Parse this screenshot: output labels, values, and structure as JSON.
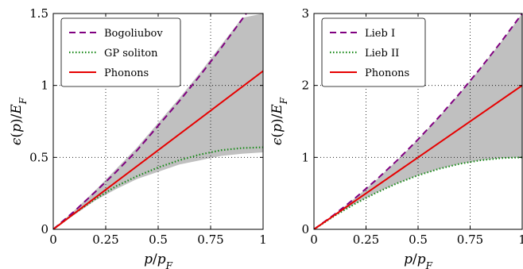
{
  "chart_data": [
    {
      "type": "line",
      "xlabel": "p/p_F",
      "ylabel": "ε(p)/E_F",
      "xlim": [
        0,
        1
      ],
      "ylim": [
        0,
        1.5
      ],
      "xticks": [
        "0",
        "0.25",
        "0.5",
        "0.75",
        "1"
      ],
      "yticks": [
        "0",
        "0.5",
        "1",
        "1.5"
      ],
      "grid": "dotted",
      "legend": "top-left",
      "shaded_region": {
        "color": "#c0c0c0",
        "x": [
          0,
          0.1,
          0.2,
          0.3,
          0.4,
          0.5,
          0.6,
          0.7,
          0.8,
          0.9,
          1.0
        ],
        "lower": [
          0,
          0.1,
          0.2,
          0.28,
          0.35,
          0.4,
          0.45,
          0.48,
          0.51,
          0.525,
          0.535
        ],
        "upper": [
          0,
          0.13,
          0.27,
          0.42,
          0.57,
          0.74,
          0.91,
          1.09,
          1.28,
          1.47,
          1.5
        ]
      },
      "series": [
        {
          "name": "Bogoliubov",
          "color": "#800080",
          "style": "dashed",
          "x": [
            0,
            0.1,
            0.2,
            0.3,
            0.4,
            0.5,
            0.6,
            0.7,
            0.8,
            0.9,
            0.95
          ],
          "y": [
            0,
            0.125,
            0.26,
            0.4,
            0.55,
            0.72,
            0.89,
            1.07,
            1.26,
            1.46,
            1.56
          ]
        },
        {
          "name": "GP soliton",
          "color": "#1a8a1a",
          "style": "dotted",
          "x": [
            0,
            0.1,
            0.2,
            0.3,
            0.4,
            0.5,
            0.6,
            0.7,
            0.8,
            0.9,
            1.0
          ],
          "y": [
            0,
            0.11,
            0.21,
            0.3,
            0.37,
            0.43,
            0.48,
            0.52,
            0.55,
            0.565,
            0.57
          ]
        },
        {
          "name": "Phonons",
          "color": "#e60000",
          "style": "solid",
          "x": [
            0,
            1
          ],
          "y": [
            0,
            1.1
          ]
        }
      ]
    },
    {
      "type": "line",
      "xlabel": "p/p_F",
      "ylabel": "ε(p)/E_F",
      "xlim": [
        0,
        1
      ],
      "ylim": [
        0,
        3
      ],
      "xticks": [
        "0",
        "0.25",
        "0.5",
        "0.75",
        "1"
      ],
      "yticks": [
        "0",
        "1",
        "2",
        "3"
      ],
      "grid": "dotted",
      "legend": "top-left",
      "shaded_region": {
        "color": "#c0c0c0",
        "x": [
          0,
          0.1,
          0.2,
          0.3,
          0.4,
          0.5,
          0.6,
          0.7,
          0.8,
          0.9,
          1.0
        ],
        "lower": [
          0,
          0.19,
          0.36,
          0.51,
          0.64,
          0.75,
          0.84,
          0.91,
          0.96,
          0.99,
          1.0
        ],
        "upper": [
          0,
          0.21,
          0.44,
          0.69,
          0.96,
          1.25,
          1.56,
          1.89,
          2.24,
          2.61,
          3.0
        ]
      },
      "series": [
        {
          "name": "Lieb I",
          "color": "#800080",
          "style": "dashed",
          "x": [
            0,
            0.1,
            0.2,
            0.3,
            0.4,
            0.5,
            0.6,
            0.7,
            0.8,
            0.9,
            1.0
          ],
          "y": [
            0,
            0.21,
            0.44,
            0.69,
            0.96,
            1.25,
            1.56,
            1.89,
            2.24,
            2.61,
            3.0
          ]
        },
        {
          "name": "Lieb II",
          "color": "#1a8a1a",
          "style": "dotted",
          "x": [
            0,
            0.1,
            0.2,
            0.3,
            0.4,
            0.5,
            0.6,
            0.7,
            0.8,
            0.9,
            1.0
          ],
          "y": [
            0,
            0.19,
            0.36,
            0.51,
            0.64,
            0.75,
            0.84,
            0.91,
            0.96,
            0.99,
            1.0
          ]
        },
        {
          "name": "Phonons",
          "color": "#e60000",
          "style": "solid",
          "x": [
            0,
            1
          ],
          "y": [
            0,
            2.0
          ]
        }
      ]
    }
  ]
}
